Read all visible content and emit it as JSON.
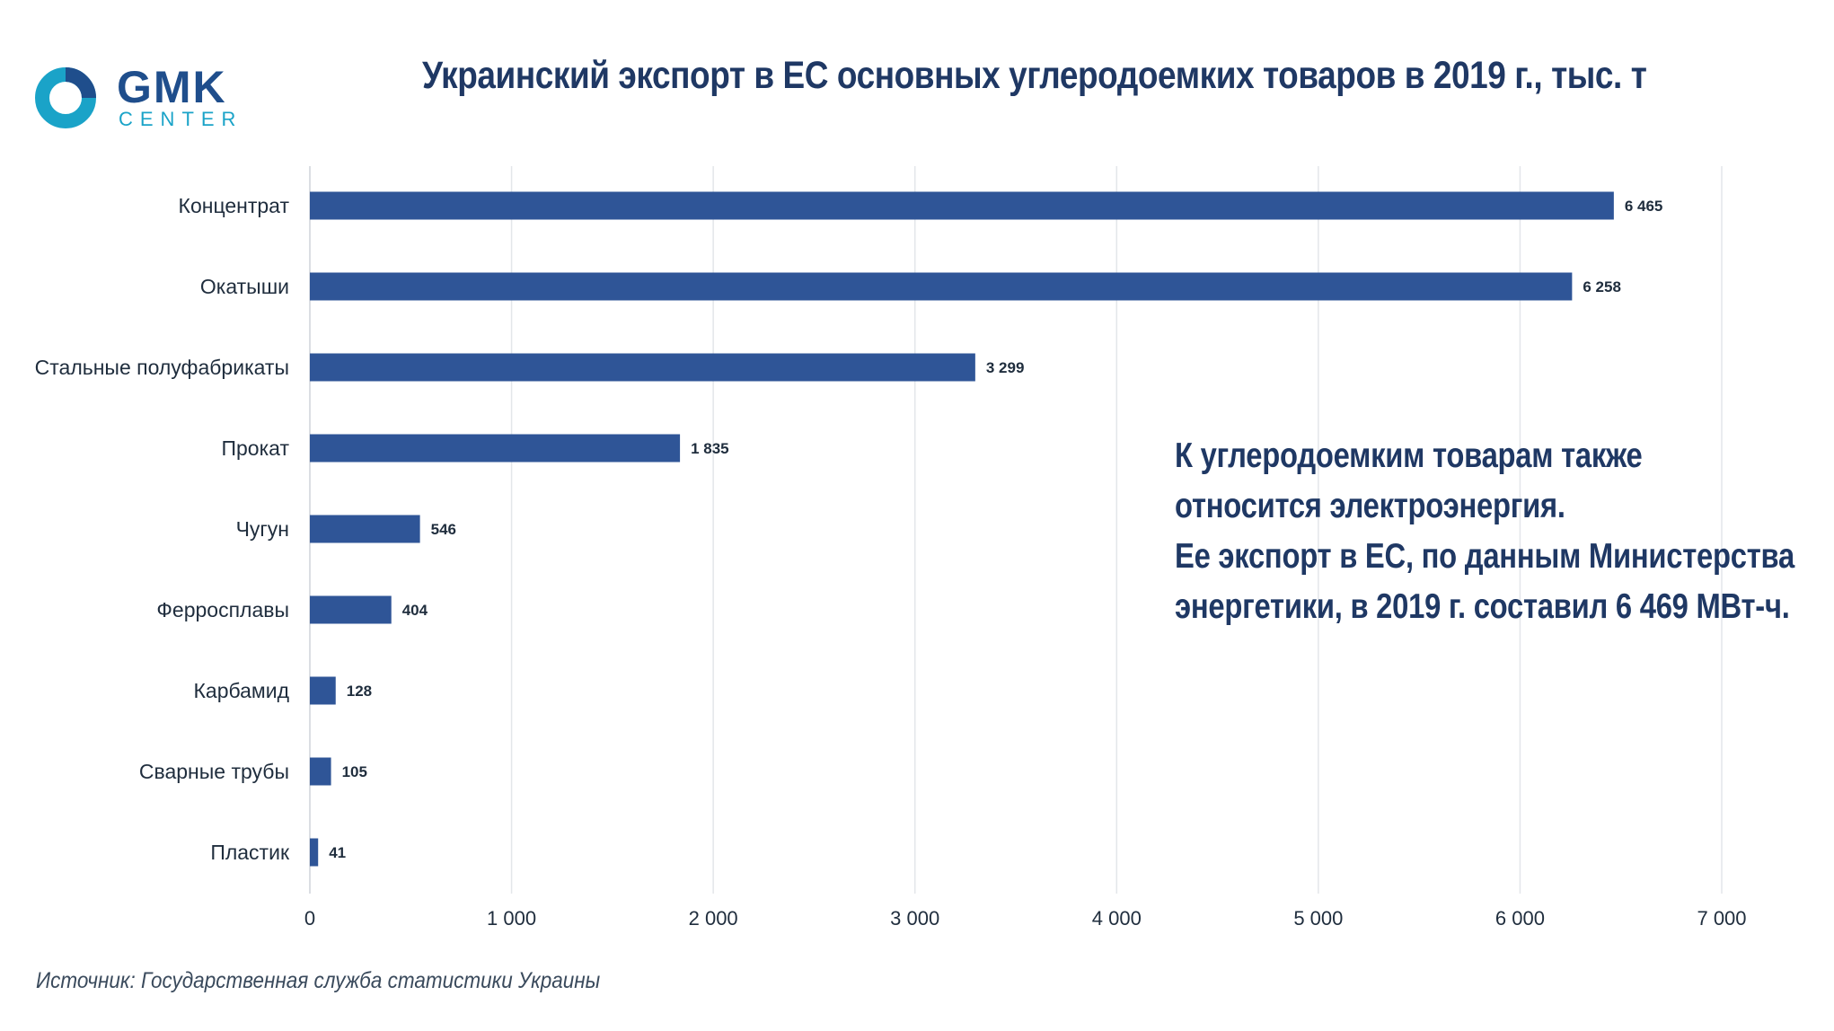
{
  "logo": {
    "name": "GMK",
    "sub": "CENTER",
    "icon": "gmk-center-logo-icon"
  },
  "title": "Украинский экспорт в ЕС основных углеродоемких товаров в 2019 г., тыс. т",
  "note": [
    "К углеродоемким товарам также",
    "относится электроэнергия.",
    "Ее экспорт в ЕС, по данным Министерства",
    "энергетики, в 2019 г. составил 6 469 МВт-ч."
  ],
  "source": "Источник: Государственная служба статистики Украины",
  "colors": {
    "bar": "#2f5597",
    "title": "#1f3864",
    "logo_ring": "#1aa3c8",
    "grid": "#e3e6ea"
  },
  "chart_data": {
    "type": "bar",
    "orientation": "horizontal",
    "title": "Украинский экспорт в ЕС основных углеродоемких товаров в 2019 г., тыс. т",
    "categories": [
      "Концентрат",
      "Окатыши",
      "Стальные полуфабрикаты",
      "Прокат",
      "Чугун",
      "Ферросплавы",
      "Карбамид",
      "Сварные трубы",
      "Пластик"
    ],
    "values": [
      6465,
      6258,
      3299,
      1835,
      546,
      404,
      128,
      105,
      41
    ],
    "value_labels": [
      "6 465",
      "6 258",
      "3 299",
      "1 835",
      "546",
      "404",
      "128",
      "105",
      "41"
    ],
    "xlim": [
      0,
      7000
    ],
    "xticks": [
      0,
      1000,
      2000,
      3000,
      4000,
      5000,
      6000,
      7000
    ],
    "xtick_labels": [
      "0",
      "1 000",
      "2 000",
      "3 000",
      "4 000",
      "5 000",
      "6 000",
      "7 000"
    ],
    "grid": true,
    "legend": "none"
  }
}
